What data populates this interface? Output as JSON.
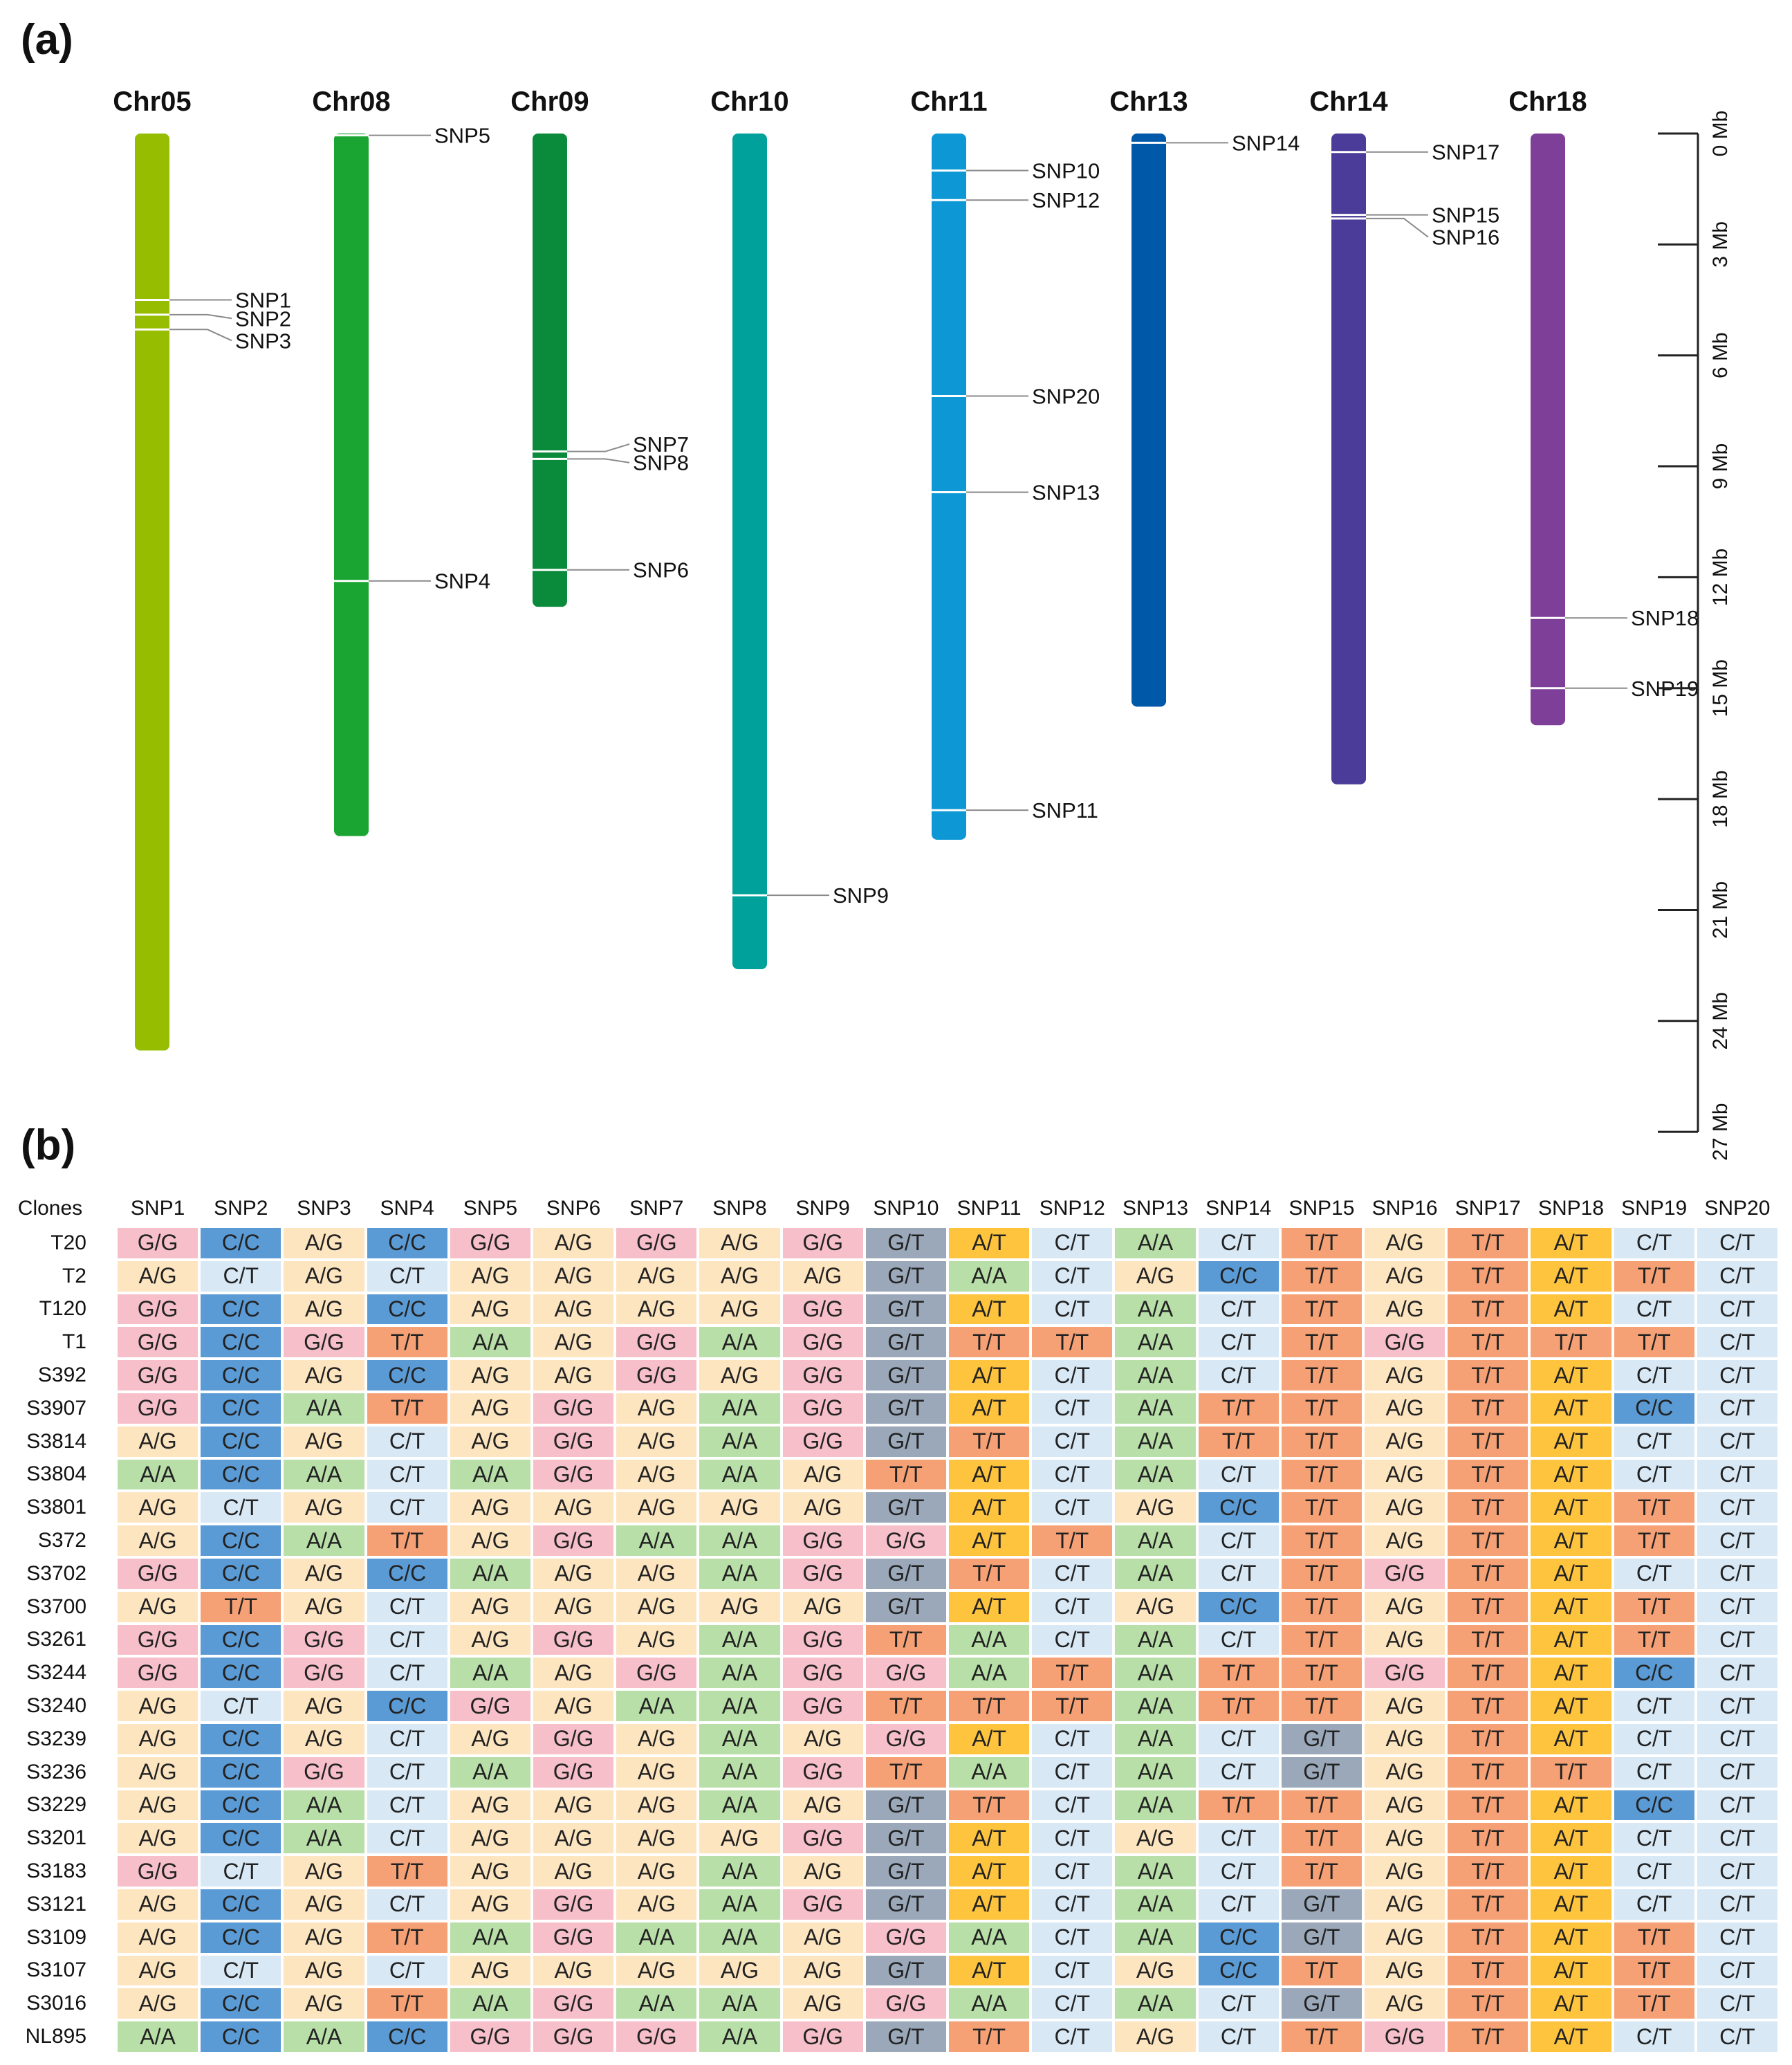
{
  "panels": {
    "a_label": "(a)",
    "b_label": "(b)"
  },
  "chromosome_map": {
    "chromosomes": [
      {
        "name": "Chr05",
        "length_mb": 24.8,
        "color": "#97bd00"
      },
      {
        "name": "Chr08",
        "length_mb": 19.0,
        "color": "#1aa431"
      },
      {
        "name": "Chr09",
        "length_mb": 12.8,
        "color": "#0a8a3b"
      },
      {
        "name": "Chr10",
        "length_mb": 22.6,
        "color": "#00a19a"
      },
      {
        "name": "Chr11",
        "length_mb": 19.1,
        "color": "#0d98d5"
      },
      {
        "name": "Chr13",
        "length_mb": 15.5,
        "color": "#0058a8"
      },
      {
        "name": "Chr14",
        "length_mb": 17.6,
        "color": "#4a3c98"
      },
      {
        "name": "Chr18",
        "length_mb": 16.0,
        "color": "#7e3f98"
      }
    ],
    "markers": [
      {
        "label": "SNP1",
        "chr": "Chr05",
        "pos_mb": 4.5,
        "label_pos_mb": 4.5
      },
      {
        "label": "SNP2",
        "chr": "Chr05",
        "pos_mb": 4.9,
        "label_pos_mb": 5.0
      },
      {
        "label": "SNP3",
        "chr": "Chr05",
        "pos_mb": 5.3,
        "label_pos_mb": 5.6
      },
      {
        "label": "SNP5",
        "chr": "Chr08",
        "pos_mb": 0.05,
        "label_pos_mb": 0.05
      },
      {
        "label": "SNP4",
        "chr": "Chr08",
        "pos_mb": 12.1,
        "label_pos_mb": 12.1
      },
      {
        "label": "SNP7",
        "chr": "Chr09",
        "pos_mb": 8.6,
        "label_pos_mb": 8.4
      },
      {
        "label": "SNP8",
        "chr": "Chr09",
        "pos_mb": 8.8,
        "label_pos_mb": 8.9
      },
      {
        "label": "SNP6",
        "chr": "Chr09",
        "pos_mb": 11.8,
        "label_pos_mb": 11.8
      },
      {
        "label": "SNP9",
        "chr": "Chr10",
        "pos_mb": 20.6,
        "label_pos_mb": 20.6
      },
      {
        "label": "SNP10",
        "chr": "Chr11",
        "pos_mb": 1.0,
        "label_pos_mb": 1.0
      },
      {
        "label": "SNP12",
        "chr": "Chr11",
        "pos_mb": 1.8,
        "label_pos_mb": 1.8
      },
      {
        "label": "SNP20",
        "chr": "Chr11",
        "pos_mb": 7.1,
        "label_pos_mb": 7.1
      },
      {
        "label": "SNP13",
        "chr": "Chr11",
        "pos_mb": 9.7,
        "label_pos_mb": 9.7
      },
      {
        "label": "SNP11",
        "chr": "Chr11",
        "pos_mb": 18.3,
        "label_pos_mb": 18.3
      },
      {
        "label": "SNP14",
        "chr": "Chr13",
        "pos_mb": 0.25,
        "label_pos_mb": 0.25
      },
      {
        "label": "SNP17",
        "chr": "Chr14",
        "pos_mb": 0.5,
        "label_pos_mb": 0.5
      },
      {
        "label": "SNP15",
        "chr": "Chr14",
        "pos_mb": 2.2,
        "label_pos_mb": 2.2
      },
      {
        "label": "SNP16",
        "chr": "Chr14",
        "pos_mb": 2.3,
        "label_pos_mb": 2.8
      },
      {
        "label": "SNP18",
        "chr": "Chr18",
        "pos_mb": 13.1,
        "label_pos_mb": 13.1
      },
      {
        "label": "SNP19",
        "chr": "Chr18",
        "pos_mb": 15.0,
        "label_pos_mb": 15.0
      }
    ],
    "scale": {
      "ticks_mb": [
        0,
        3,
        6,
        9,
        12,
        15,
        18,
        21,
        24,
        27
      ],
      "tick_labels": [
        "0 Mb",
        "3 Mb",
        "6 Mb",
        "9 Mb",
        "12 Mb",
        "15 Mb",
        "18 Mb",
        "21 Mb",
        "24 Mb",
        "27 Mb"
      ]
    }
  },
  "genotype_table": {
    "corner_label": "Clones",
    "columns": [
      "SNP1",
      "SNP2",
      "SNP3",
      "SNP4",
      "SNP5",
      "SNP6",
      "SNP7",
      "SNP8",
      "SNP9",
      "SNP10",
      "SNP11",
      "SNP12",
      "SNP13",
      "SNP14",
      "SNP15",
      "SNP16",
      "SNP17",
      "SNP18",
      "SNP19",
      "SNP20"
    ],
    "rows": [
      {
        "clone": "T20",
        "genotypes": [
          "G/G",
          "C/C",
          "A/G",
          "C/C",
          "G/G",
          "A/G",
          "G/G",
          "A/G",
          "G/G",
          "G/T",
          "A/T",
          "C/T",
          "A/A",
          "C/T",
          "T/T",
          "A/G",
          "T/T",
          "A/T",
          "C/T",
          "C/T"
        ]
      },
      {
        "clone": "T2",
        "genotypes": [
          "A/G",
          "C/T",
          "A/G",
          "C/T",
          "A/G",
          "A/G",
          "A/G",
          "A/G",
          "A/G",
          "G/T",
          "A/A",
          "C/T",
          "A/G",
          "C/C",
          "T/T",
          "A/G",
          "T/T",
          "A/T",
          "T/T",
          "C/T"
        ]
      },
      {
        "clone": "T120",
        "genotypes": [
          "G/G",
          "C/C",
          "A/G",
          "C/C",
          "A/G",
          "A/G",
          "A/G",
          "A/G",
          "G/G",
          "G/T",
          "A/T",
          "C/T",
          "A/A",
          "C/T",
          "T/T",
          "A/G",
          "T/T",
          "A/T",
          "C/T",
          "C/T"
        ]
      },
      {
        "clone": "T1",
        "genotypes": [
          "G/G",
          "C/C",
          "G/G",
          "T/T",
          "A/A",
          "A/G",
          "G/G",
          "A/A",
          "G/G",
          "G/T",
          "T/T",
          "T/T",
          "A/A",
          "C/T",
          "T/T",
          "G/G",
          "T/T",
          "T/T",
          "T/T",
          "C/T"
        ]
      },
      {
        "clone": "S392",
        "genotypes": [
          "G/G",
          "C/C",
          "A/G",
          "C/C",
          "A/G",
          "A/G",
          "G/G",
          "A/G",
          "G/G",
          "G/T",
          "A/T",
          "C/T",
          "A/A",
          "C/T",
          "T/T",
          "A/G",
          "T/T",
          "A/T",
          "C/T",
          "C/T"
        ]
      },
      {
        "clone": "S3907",
        "genotypes": [
          "G/G",
          "C/C",
          "A/A",
          "T/T",
          "A/G",
          "G/G",
          "A/G",
          "A/A",
          "G/G",
          "G/T",
          "A/T",
          "C/T",
          "A/A",
          "T/T",
          "T/T",
          "A/G",
          "T/T",
          "A/T",
          "C/C",
          "C/T"
        ]
      },
      {
        "clone": "S3814",
        "genotypes": [
          "A/G",
          "C/C",
          "A/G",
          "C/T",
          "A/G",
          "G/G",
          "A/G",
          "A/A",
          "G/G",
          "G/T",
          "T/T",
          "C/T",
          "A/A",
          "T/T",
          "T/T",
          "A/G",
          "T/T",
          "A/T",
          "C/T",
          "C/T"
        ]
      },
      {
        "clone": "S3804",
        "genotypes": [
          "A/A",
          "C/C",
          "A/A",
          "C/T",
          "A/A",
          "G/G",
          "A/G",
          "A/A",
          "A/G",
          "T/T",
          "A/T",
          "C/T",
          "A/A",
          "C/T",
          "T/T",
          "A/G",
          "T/T",
          "A/T",
          "C/T",
          "C/T"
        ]
      },
      {
        "clone": "S3801",
        "genotypes": [
          "A/G",
          "C/T",
          "A/G",
          "C/T",
          "A/G",
          "A/G",
          "A/G",
          "A/G",
          "A/G",
          "G/T",
          "A/T",
          "C/T",
          "A/G",
          "C/C",
          "T/T",
          "A/G",
          "T/T",
          "A/T",
          "T/T",
          "C/T"
        ]
      },
      {
        "clone": "S372",
        "genotypes": [
          "A/G",
          "C/C",
          "A/A",
          "T/T",
          "A/G",
          "G/G",
          "A/A",
          "A/A",
          "G/G",
          "G/G",
          "A/T",
          "T/T",
          "A/A",
          "C/T",
          "T/T",
          "A/G",
          "T/T",
          "A/T",
          "T/T",
          "C/T"
        ]
      },
      {
        "clone": "S3702",
        "genotypes": [
          "G/G",
          "C/C",
          "A/G",
          "C/C",
          "A/A",
          "A/G",
          "A/G",
          "A/A",
          "G/G",
          "G/T",
          "T/T",
          "C/T",
          "A/A",
          "C/T",
          "T/T",
          "G/G",
          "T/T",
          "A/T",
          "C/T",
          "C/T"
        ]
      },
      {
        "clone": "S3700",
        "genotypes": [
          "A/G",
          "T/T",
          "A/G",
          "C/T",
          "A/G",
          "A/G",
          "A/G",
          "A/G",
          "A/G",
          "G/T",
          "A/T",
          "C/T",
          "A/G",
          "C/C",
          "T/T",
          "A/G",
          "T/T",
          "A/T",
          "T/T",
          "C/T"
        ]
      },
      {
        "clone": "S3261",
        "genotypes": [
          "G/G",
          "C/C",
          "G/G",
          "C/T",
          "A/G",
          "G/G",
          "A/G",
          "A/A",
          "G/G",
          "T/T",
          "A/A",
          "C/T",
          "A/A",
          "C/T",
          "T/T",
          "A/G",
          "T/T",
          "A/T",
          "T/T",
          "C/T"
        ]
      },
      {
        "clone": "S3244",
        "genotypes": [
          "G/G",
          "C/C",
          "G/G",
          "C/T",
          "A/A",
          "A/G",
          "G/G",
          "A/A",
          "G/G",
          "G/G",
          "A/A",
          "T/T",
          "A/A",
          "T/T",
          "T/T",
          "G/G",
          "T/T",
          "A/T",
          "C/C",
          "C/T"
        ]
      },
      {
        "clone": "S3240",
        "genotypes": [
          "A/G",
          "C/T",
          "A/G",
          "C/C",
          "G/G",
          "A/G",
          "A/A",
          "A/A",
          "G/G",
          "T/T",
          "T/T",
          "T/T",
          "A/A",
          "T/T",
          "T/T",
          "A/G",
          "T/T",
          "A/T",
          "C/T",
          "C/T"
        ]
      },
      {
        "clone": "S3239",
        "genotypes": [
          "A/G",
          "C/C",
          "A/G",
          "C/T",
          "A/G",
          "G/G",
          "A/G",
          "A/A",
          "A/G",
          "G/G",
          "A/T",
          "C/T",
          "A/A",
          "C/T",
          "G/T",
          "A/G",
          "T/T",
          "A/T",
          "C/T",
          "C/T"
        ]
      },
      {
        "clone": "S3236",
        "genotypes": [
          "A/G",
          "C/C",
          "G/G",
          "C/T",
          "A/A",
          "G/G",
          "A/G",
          "A/A",
          "G/G",
          "T/T",
          "A/A",
          "C/T",
          "A/A",
          "C/T",
          "G/T",
          "A/G",
          "T/T",
          "T/T",
          "C/T",
          "C/T"
        ]
      },
      {
        "clone": "S3229",
        "genotypes": [
          "A/G",
          "C/C",
          "A/A",
          "C/T",
          "A/G",
          "A/G",
          "A/G",
          "A/A",
          "A/G",
          "G/T",
          "T/T",
          "C/T",
          "A/A",
          "T/T",
          "T/T",
          "A/G",
          "T/T",
          "A/T",
          "C/C",
          "C/T"
        ]
      },
      {
        "clone": "S3201",
        "genotypes": [
          "A/G",
          "C/C",
          "A/A",
          "C/T",
          "A/G",
          "A/G",
          "A/G",
          "A/G",
          "G/G",
          "G/T",
          "A/T",
          "C/T",
          "A/G",
          "C/T",
          "T/T",
          "A/G",
          "T/T",
          "A/T",
          "C/T",
          "C/T"
        ]
      },
      {
        "clone": "S3183",
        "genotypes": [
          "G/G",
          "C/T",
          "A/G",
          "T/T",
          "A/G",
          "A/G",
          "A/G",
          "A/A",
          "A/G",
          "G/T",
          "A/T",
          "C/T",
          "A/A",
          "C/T",
          "T/T",
          "A/G",
          "T/T",
          "A/T",
          "C/T",
          "C/T"
        ]
      },
      {
        "clone": "S3121",
        "genotypes": [
          "A/G",
          "C/C",
          "A/G",
          "C/T",
          "A/G",
          "G/G",
          "A/G",
          "A/A",
          "G/G",
          "G/T",
          "A/T",
          "C/T",
          "A/A",
          "C/T",
          "G/T",
          "A/G",
          "T/T",
          "A/T",
          "C/T",
          "C/T"
        ]
      },
      {
        "clone": "S3109",
        "genotypes": [
          "A/G",
          "C/C",
          "A/G",
          "T/T",
          "A/A",
          "G/G",
          "A/A",
          "A/A",
          "A/G",
          "G/G",
          "A/A",
          "C/T",
          "A/A",
          "C/C",
          "G/T",
          "A/G",
          "T/T",
          "A/T",
          "T/T",
          "C/T"
        ]
      },
      {
        "clone": "S3107",
        "genotypes": [
          "A/G",
          "C/T",
          "A/G",
          "C/T",
          "A/G",
          "A/G",
          "A/G",
          "A/G",
          "A/G",
          "G/T",
          "A/T",
          "C/T",
          "A/G",
          "C/C",
          "T/T",
          "A/G",
          "T/T",
          "A/T",
          "T/T",
          "C/T"
        ]
      },
      {
        "clone": "S3016",
        "genotypes": [
          "A/G",
          "C/C",
          "A/G",
          "T/T",
          "A/A",
          "G/G",
          "A/A",
          "A/A",
          "A/G",
          "G/G",
          "A/A",
          "C/T",
          "A/A",
          "C/T",
          "G/T",
          "A/G",
          "T/T",
          "A/T",
          "T/T",
          "C/T"
        ]
      },
      {
        "clone": "NL895",
        "genotypes": [
          "A/A",
          "C/C",
          "A/A",
          "C/C",
          "G/G",
          "G/G",
          "G/G",
          "A/A",
          "G/G",
          "G/T",
          "T/T",
          "C/T",
          "A/G",
          "C/T",
          "T/T",
          "G/G",
          "T/T",
          "A/T",
          "C/T",
          "C/T"
        ]
      }
    ],
    "genotype_colors": {
      "G/G": "#f7bfca",
      "A/G": "#fde5c0",
      "A/A": "#b8dfa8",
      "C/C": "#5b9bd5",
      "C/T": "#d8e8f5",
      "T/T": "#f6a175",
      "G/T": "#9aa8b9",
      "A/T": "#ffc43d"
    }
  }
}
